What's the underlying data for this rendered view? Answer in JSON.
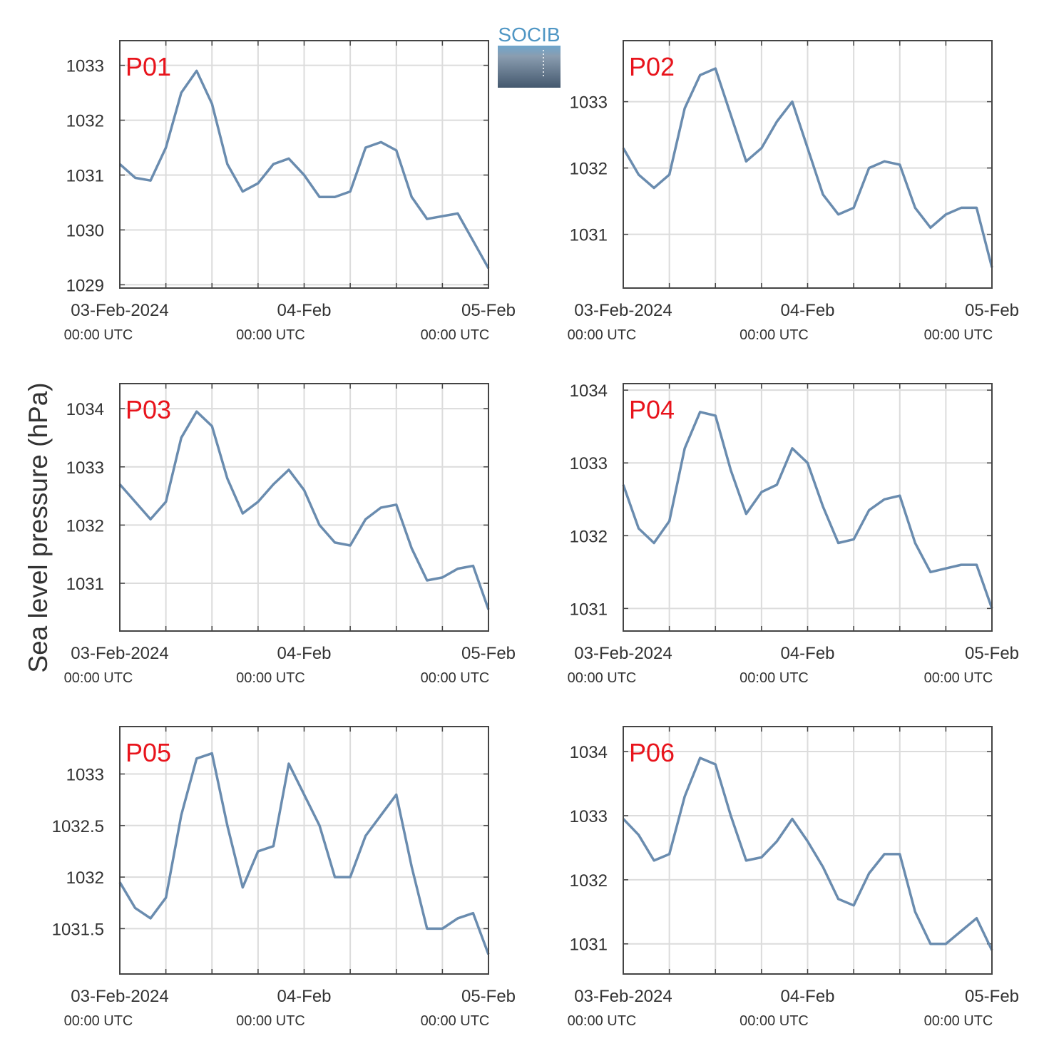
{
  "ylabel": "Sea level pressure (hPa)",
  "logo": "SOCIB",
  "chart_data": [
    {
      "type": "line",
      "title": "P01",
      "title_color": "#e8141c",
      "x": [
        0,
        2,
        4,
        6,
        8,
        10,
        12,
        14,
        16,
        18,
        20,
        22,
        24,
        26,
        28,
        30,
        32,
        34,
        36,
        38,
        40,
        42,
        44,
        46,
        48
      ],
      "series": [
        {
          "color": "#6a8caf",
          "values": [
            1031.2,
            1030.95,
            1030.9,
            1031.5,
            1032.5,
            1032.9,
            1032.3,
            1031.2,
            1030.7,
            1030.85,
            1031.2,
            1031.3,
            1031.0,
            1030.6,
            1030.6,
            1030.7,
            1031.5,
            1031.6,
            1031.45,
            1030.6,
            1030.2,
            1030.25,
            1030.3,
            1029.8,
            1029.3
          ]
        }
      ],
      "xlim": [
        0,
        48
      ],
      "ylim": [
        1028.94,
        1033.45
      ],
      "yticks": [
        1029,
        1030,
        1031,
        1032,
        1033
      ],
      "xticks": [
        {
          "value": 0,
          "label": "03-Feb-2024",
          "sublabel": "00:00 UTC"
        },
        {
          "value": 24,
          "label": "04-Feb",
          "sublabel": "00:00 UTC"
        },
        {
          "value": 48,
          "label": "05-Feb",
          "sublabel": "00:00 UTC"
        }
      ],
      "xgrid": [
        6,
        12,
        18,
        30,
        36,
        42
      ],
      "grid": true
    },
    {
      "type": "line",
      "title": "P02",
      "title_color": "#e8141c",
      "x": [
        0,
        2,
        4,
        6,
        8,
        10,
        12,
        14,
        16,
        18,
        20,
        22,
        24,
        26,
        28,
        30,
        32,
        34,
        36,
        38,
        40,
        42,
        44,
        46,
        48
      ],
      "series": [
        {
          "color": "#6a8caf",
          "values": [
            1032.3,
            1031.9,
            1031.7,
            1031.9,
            1032.9,
            1033.4,
            1033.5,
            1032.8,
            1032.1,
            1032.3,
            1032.7,
            1033.0,
            1032.3,
            1031.6,
            1031.3,
            1031.4,
            1032.0,
            1032.1,
            1032.05,
            1031.4,
            1031.1,
            1031.3,
            1031.4,
            1031.4,
            1030.5
          ]
        }
      ],
      "xlim": [
        0,
        48
      ],
      "ylim": [
        1030.19,
        1033.92
      ],
      "yticks": [
        1031,
        1032,
        1033
      ],
      "xticks": [
        {
          "value": 0,
          "label": "03-Feb-2024",
          "sublabel": "00:00 UTC"
        },
        {
          "value": 24,
          "label": "04-Feb",
          "sublabel": "00:00 UTC"
        },
        {
          "value": 48,
          "label": "05-Feb",
          "sublabel": "00:00 UTC"
        }
      ],
      "xgrid": [
        6,
        12,
        18,
        30,
        36,
        42
      ],
      "grid": true
    },
    {
      "type": "line",
      "title": "P03",
      "title_color": "#e8141c",
      "x": [
        0,
        2,
        4,
        6,
        8,
        10,
        12,
        14,
        16,
        18,
        20,
        22,
        24,
        26,
        28,
        30,
        32,
        34,
        36,
        38,
        40,
        42,
        44,
        46,
        48
      ],
      "series": [
        {
          "color": "#6a8caf",
          "values": [
            1032.7,
            1032.4,
            1032.1,
            1032.4,
            1033.5,
            1033.95,
            1033.7,
            1032.8,
            1032.2,
            1032.4,
            1032.7,
            1032.95,
            1032.6,
            1032.0,
            1031.7,
            1031.65,
            1032.1,
            1032.3,
            1032.35,
            1031.6,
            1031.05,
            1031.1,
            1031.25,
            1031.3,
            1030.55
          ]
        }
      ],
      "xlim": [
        0,
        48
      ],
      "ylim": [
        1030.18,
        1034.43
      ],
      "yticks": [
        1031,
        1032,
        1033,
        1034
      ],
      "xticks": [
        {
          "value": 0,
          "label": "03-Feb-2024",
          "sublabel": "00:00 UTC"
        },
        {
          "value": 24,
          "label": "04-Feb",
          "sublabel": "00:00 UTC"
        },
        {
          "value": 48,
          "label": "05-Feb",
          "sublabel": "00:00 UTC"
        }
      ],
      "xgrid": [
        6,
        12,
        18,
        30,
        36,
        42
      ],
      "grid": true
    },
    {
      "type": "line",
      "title": "P04",
      "title_color": "#e8141c",
      "x": [
        0,
        2,
        4,
        6,
        8,
        10,
        12,
        14,
        16,
        18,
        20,
        22,
        24,
        26,
        28,
        30,
        32,
        34,
        36,
        38,
        40,
        42,
        44,
        46,
        48
      ],
      "series": [
        {
          "color": "#6a8caf",
          "values": [
            1032.7,
            1032.1,
            1031.9,
            1032.2,
            1033.2,
            1033.7,
            1033.65,
            1032.9,
            1032.3,
            1032.6,
            1032.7,
            1033.2,
            1033.0,
            1032.4,
            1031.9,
            1031.95,
            1032.35,
            1032.5,
            1032.55,
            1031.9,
            1031.5,
            1031.55,
            1031.6,
            1031.6,
            1031.0
          ]
        }
      ],
      "xlim": [
        0,
        48
      ],
      "ylim": [
        1030.69,
        1034.09
      ],
      "yticks": [
        1031,
        1032,
        1033,
        1034
      ],
      "xticks": [
        {
          "value": 0,
          "label": "03-Feb-2024",
          "sublabel": "00:00 UTC"
        },
        {
          "value": 24,
          "label": "04-Feb",
          "sublabel": "00:00 UTC"
        },
        {
          "value": 48,
          "label": "05-Feb",
          "sublabel": "00:00 UTC"
        }
      ],
      "xgrid": [
        6,
        12,
        18,
        30,
        36,
        42
      ],
      "grid": true
    },
    {
      "type": "line",
      "title": "P05",
      "title_color": "#e8141c",
      "x": [
        0,
        2,
        4,
        6,
        8,
        10,
        12,
        14,
        16,
        18,
        20,
        22,
        24,
        26,
        28,
        30,
        32,
        34,
        36,
        38,
        40,
        42,
        44,
        46,
        48
      ],
      "series": [
        {
          "color": "#6a8caf",
          "values": [
            1031.95,
            1031.7,
            1031.6,
            1031.8,
            1032.6,
            1033.15,
            1033.2,
            1032.5,
            1031.9,
            1032.25,
            1032.3,
            1033.1,
            1032.8,
            1032.5,
            1032.0,
            1032.0,
            1032.4,
            1032.6,
            1032.8,
            1032.1,
            1031.5,
            1031.5,
            1031.6,
            1031.65,
            1031.25
          ]
        }
      ],
      "xlim": [
        0,
        48
      ],
      "ylim": [
        1031.06,
        1033.46
      ],
      "yticks": [
        1031.5,
        1032,
        1032.5,
        1033
      ],
      "xticks": [
        {
          "value": 0,
          "label": "03-Feb-2024",
          "sublabel": "00:00 UTC"
        },
        {
          "value": 24,
          "label": "04-Feb",
          "sublabel": "00:00 UTC"
        },
        {
          "value": 48,
          "label": "05-Feb",
          "sublabel": "00:00 UTC"
        }
      ],
      "xgrid": [
        6,
        12,
        18,
        30,
        36,
        42
      ],
      "grid": true
    },
    {
      "type": "line",
      "title": "P06",
      "title_color": "#e8141c",
      "x": [
        0,
        2,
        4,
        6,
        8,
        10,
        12,
        14,
        16,
        18,
        20,
        22,
        24,
        26,
        28,
        30,
        32,
        34,
        36,
        38,
        40,
        42,
        44,
        46,
        48
      ],
      "series": [
        {
          "color": "#6a8caf",
          "values": [
            1032.95,
            1032.7,
            1032.3,
            1032.4,
            1033.3,
            1033.9,
            1033.8,
            1033.0,
            1032.3,
            1032.35,
            1032.6,
            1032.95,
            1032.6,
            1032.2,
            1031.7,
            1031.6,
            1032.1,
            1032.4,
            1032.4,
            1031.5,
            1031.0,
            1031.0,
            1031.2,
            1031.4,
            1030.9
          ]
        }
      ],
      "xlim": [
        0,
        48
      ],
      "ylim": [
        1030.53,
        1034.39
      ],
      "yticks": [
        1031,
        1032,
        1033,
        1034
      ],
      "xticks": [
        {
          "value": 0,
          "label": "03-Feb-2024",
          "sublabel": "00:00 UTC"
        },
        {
          "value": 24,
          "label": "04-Feb",
          "sublabel": "00:00 UTC"
        },
        {
          "value": 48,
          "label": "05-Feb",
          "sublabel": "00:00 UTC"
        }
      ],
      "xgrid": [
        6,
        12,
        18,
        30,
        36,
        42
      ],
      "grid": true
    }
  ]
}
